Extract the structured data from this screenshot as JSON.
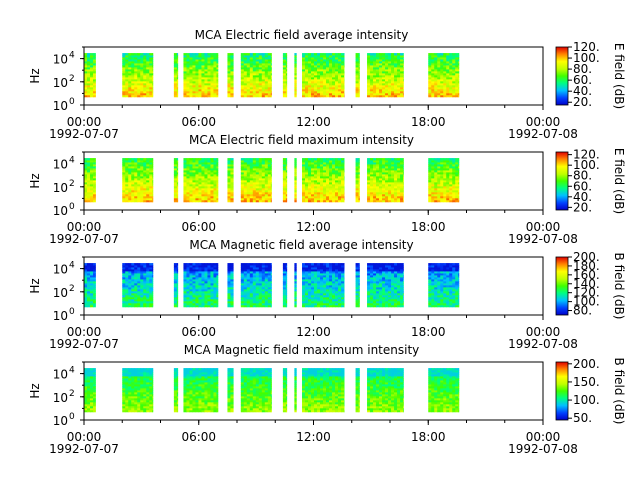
{
  "chart_data": [
    {
      "type": "heatmap",
      "title": "MCA  Electric field average intensity",
      "ylabel": "Hz",
      "y_scale": "log",
      "ylim": [
        1,
        100000
      ],
      "y_ticks": [
        {
          "base": "10",
          "exp": "0"
        },
        {
          "base": "10",
          "exp": "2"
        },
        {
          "base": "10",
          "exp": "4"
        }
      ],
      "x_range_hours": [
        0,
        24
      ],
      "x_ticks": [
        {
          "time": "00:00",
          "date": "1992-07-07"
        },
        {
          "time": "06:00",
          "date": ""
        },
        {
          "time": "12:00",
          "date": ""
        },
        {
          "time": "18:00",
          "date": ""
        },
        {
          "time": "00:00",
          "date": "1992-07-08"
        }
      ],
      "colorbar": {
        "label": "E field (dB)",
        "range": [
          15,
          120
        ],
        "ticks": [
          "120.",
          "100.",
          "80.",
          "60.",
          "40.",
          "20."
        ],
        "tick_values": [
          120,
          100,
          80,
          60,
          40,
          20
        ]
      },
      "data_segments_hours": [
        [
          0.0,
          0.6
        ],
        [
          2.0,
          3.6
        ],
        [
          4.7,
          4.9
        ],
        [
          5.2,
          7.0
        ],
        [
          7.5,
          7.8
        ],
        [
          8.2,
          9.8
        ],
        [
          10.4,
          10.6
        ],
        [
          11.0,
          11.1
        ],
        [
          11.4,
          13.6
        ],
        [
          14.2,
          14.4
        ],
        [
          14.8,
          16.7
        ],
        [
          18.0,
          19.6
        ]
      ],
      "freq_range_hz": [
        5,
        30000
      ],
      "color_value_range_db": [
        35,
        110
      ]
    },
    {
      "type": "heatmap",
      "title": "MCA  Electric field maximum intensity",
      "ylabel": "Hz",
      "y_scale": "log",
      "ylim": [
        1,
        100000
      ],
      "y_ticks": [
        {
          "base": "10",
          "exp": "0"
        },
        {
          "base": "10",
          "exp": "2"
        },
        {
          "base": "10",
          "exp": "4"
        }
      ],
      "x_range_hours": [
        0,
        24
      ],
      "x_ticks": [
        {
          "time": "00:00",
          "date": "1992-07-07"
        },
        {
          "time": "06:00",
          "date": ""
        },
        {
          "time": "12:00",
          "date": ""
        },
        {
          "time": "18:00",
          "date": ""
        },
        {
          "time": "00:00",
          "date": "1992-07-08"
        }
      ],
      "colorbar": {
        "label": "E field (dB)",
        "range": [
          15,
          125
        ],
        "ticks": [
          "120.",
          "100.",
          "80.",
          "60.",
          "40.",
          "20."
        ],
        "tick_values": [
          120,
          100,
          80,
          60,
          40,
          20
        ]
      },
      "data_segments_hours": [
        [
          0.0,
          0.6
        ],
        [
          2.0,
          3.6
        ],
        [
          4.7,
          4.9
        ],
        [
          5.2,
          7.0
        ],
        [
          7.5,
          7.8
        ],
        [
          8.2,
          9.8
        ],
        [
          10.4,
          10.6
        ],
        [
          11.0,
          11.1
        ],
        [
          11.4,
          13.6
        ],
        [
          14.2,
          14.4
        ],
        [
          14.8,
          16.7
        ],
        [
          18.0,
          19.6
        ]
      ],
      "freq_range_hz": [
        5,
        30000
      ],
      "color_value_range_db": [
        40,
        115
      ]
    },
    {
      "type": "heatmap",
      "title": "MCA  Magnetic field average intensity",
      "ylabel": "Hz",
      "y_scale": "log",
      "ylim": [
        1,
        100000
      ],
      "y_ticks": [
        {
          "base": "10",
          "exp": "0"
        },
        {
          "base": "10",
          "exp": "2"
        },
        {
          "base": "10",
          "exp": "4"
        }
      ],
      "x_range_hours": [
        0,
        24
      ],
      "x_ticks": [
        {
          "time": "00:00",
          "date": "1992-07-07"
        },
        {
          "time": "06:00",
          "date": ""
        },
        {
          "time": "12:00",
          "date": ""
        },
        {
          "time": "18:00",
          "date": ""
        },
        {
          "time": "00:00",
          "date": "1992-07-08"
        }
      ],
      "colorbar": {
        "label": "B field (dB)",
        "range": [
          70,
          200
        ],
        "ticks": [
          "200.",
          "180.",
          "160.",
          "140.",
          "120.",
          "100.",
          "80."
        ],
        "tick_values": [
          200,
          180,
          160,
          140,
          120,
          100,
          80
        ]
      },
      "data_segments_hours": [
        [
          0.0,
          0.6
        ],
        [
          2.0,
          3.6
        ],
        [
          4.7,
          4.9
        ],
        [
          5.2,
          7.0
        ],
        [
          7.5,
          7.8
        ],
        [
          8.2,
          9.8
        ],
        [
          10.4,
          10.6
        ],
        [
          11.0,
          11.1
        ],
        [
          11.4,
          13.6
        ],
        [
          14.2,
          14.4
        ],
        [
          14.8,
          16.7
        ],
        [
          18.0,
          19.6
        ]
      ],
      "freq_range_hz": [
        5,
        30000
      ],
      "color_value_range_db": [
        75,
        165
      ]
    },
    {
      "type": "heatmap",
      "title": "MCA  Magnetic field maximum intensity",
      "ylabel": "Hz",
      "y_scale": "log",
      "ylim": [
        1,
        100000
      ],
      "y_ticks": [
        {
          "base": "10",
          "exp": "0"
        },
        {
          "base": "10",
          "exp": "2"
        },
        {
          "base": "10",
          "exp": "4"
        }
      ],
      "x_range_hours": [
        0,
        24
      ],
      "x_ticks": [
        {
          "time": "00:00",
          "date": "1992-07-07"
        },
        {
          "time": "06:00",
          "date": ""
        },
        {
          "time": "12:00",
          "date": ""
        },
        {
          "time": "18:00",
          "date": ""
        },
        {
          "time": "00:00",
          "date": "1992-07-08"
        }
      ],
      "colorbar": {
        "label": "B field (dB)",
        "range": [
          45,
          205
        ],
        "ticks": [
          "200.",
          "150.",
          "100.",
          "50."
        ],
        "tick_values": [
          200,
          150,
          100,
          50
        ]
      },
      "data_segments_hours": [
        [
          0.0,
          0.6
        ],
        [
          2.0,
          3.6
        ],
        [
          4.7,
          4.9
        ],
        [
          5.2,
          7.0
        ],
        [
          7.5,
          7.8
        ],
        [
          8.2,
          9.8
        ],
        [
          10.4,
          10.6
        ],
        [
          11.0,
          11.1
        ],
        [
          11.4,
          13.6
        ],
        [
          14.2,
          14.4
        ],
        [
          14.8,
          16.7
        ],
        [
          18.0,
          19.6
        ]
      ],
      "freq_range_hz": [
        5,
        30000
      ],
      "color_value_range_db": [
        90,
        175
      ]
    }
  ]
}
